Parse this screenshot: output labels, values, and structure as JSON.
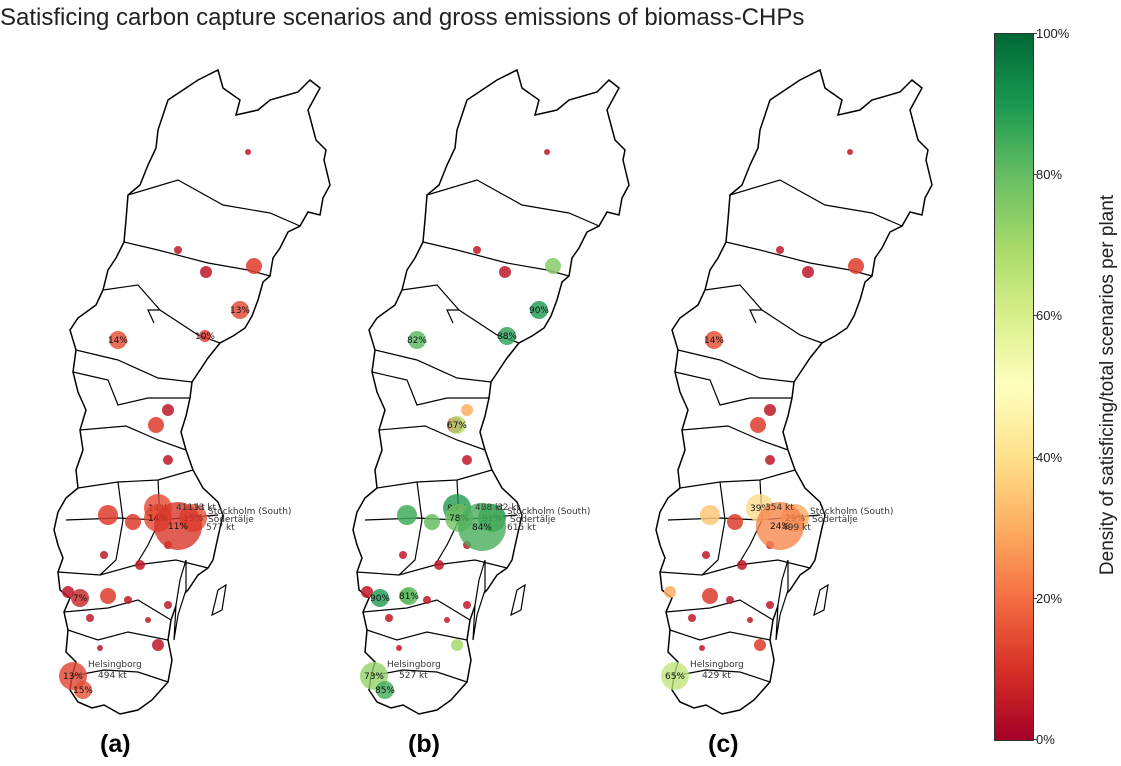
{
  "title": "Satisficing carbon capture scenarios and gross emissions of biomass-CHPs",
  "colorbar": {
    "label": "Density of satisficing/total scenarios per plant",
    "ticks": [
      "100%",
      "80%",
      "60%",
      "40%",
      "20%",
      "0%"
    ]
  },
  "panels": [
    {
      "label": "(a)",
      "markers": [
        {
          "text": "13%",
          "v": 0.13,
          "size": "m"
        },
        {
          "text": "10%",
          "v": 0.1,
          "size": "s"
        },
        {
          "text": "14%",
          "v": 0.14,
          "size": "m"
        },
        {
          "text": "14%",
          "v": 0.14,
          "size": "l"
        },
        {
          "text": "14%",
          "v": 0.14,
          "size": "l"
        },
        {
          "text": "15%",
          "v": 0.15,
          "size": "l"
        },
        {
          "text": "11%",
          "v": 0.11,
          "size": "xl"
        },
        {
          "text": "7%",
          "v": 0.07,
          "size": "m"
        },
        {
          "text": "13%",
          "v": 0.13,
          "size": "l"
        },
        {
          "text": "15%",
          "v": 0.15,
          "size": "m"
        }
      ],
      "annotations": [
        "411 kt",
        "13 kt",
        "Södertälje",
        "577 kt",
        "494 kt"
      ]
    },
    {
      "label": "(b)",
      "markers": [
        {
          "text": "90%",
          "v": 0.9,
          "size": "m"
        },
        {
          "text": "88%",
          "v": 0.88,
          "size": "m"
        },
        {
          "text": "82%",
          "v": 0.82,
          "size": "m"
        },
        {
          "text": "67%",
          "v": 0.67,
          "size": "m"
        },
        {
          "text": "89%",
          "v": 0.89,
          "size": "l"
        },
        {
          "text": "78%",
          "v": 0.78,
          "size": "l"
        },
        {
          "text": "91%",
          "v": 0.91,
          "size": "l"
        },
        {
          "text": "84%",
          "v": 0.84,
          "size": "xl"
        },
        {
          "text": "90%",
          "v": 0.9,
          "size": "m"
        },
        {
          "text": "81%",
          "v": 0.81,
          "size": "m"
        },
        {
          "text": "73%",
          "v": 0.73,
          "size": "l"
        },
        {
          "text": "85%",
          "v": 0.85,
          "size": "m"
        }
      ],
      "annotations": [
        "488 kt",
        "32 kt",
        "Södertälje",
        "615 kt",
        "527 kt"
      ]
    },
    {
      "label": "(c)",
      "markers": [
        {
          "text": "14%",
          "v": 0.14,
          "size": "m"
        },
        {
          "text": "39%",
          "v": 0.39,
          "size": "l"
        },
        {
          "text": "29%",
          "v": 0.29,
          "size": "l"
        },
        {
          "text": "24%",
          "v": 0.24,
          "size": "xl"
        },
        {
          "text": "65%",
          "v": 0.65,
          "size": "l"
        }
      ],
      "annotations": [
        "354 kt",
        "Södertälje",
        "499 kt",
        "429 kt"
      ]
    }
  ],
  "shared_labels": {
    "stockholm": "Stockholm (South)",
    "helsingborg": "Helsingborg"
  }
}
